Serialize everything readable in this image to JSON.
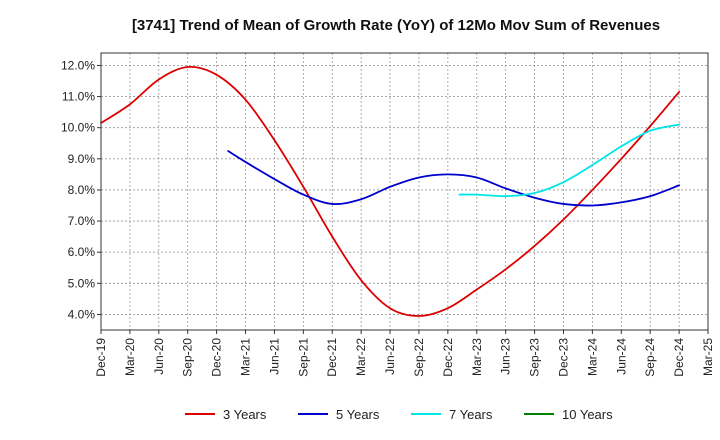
{
  "chart_data": {
    "type": "line",
    "title": "[3741]  Trend of Mean of Growth Rate (YoY) of 12Mo Mov Sum of Revenues",
    "xlabel": "",
    "ylabel": "",
    "ylim": [
      3.5,
      12.4
    ],
    "y_ticks": [
      4.0,
      5.0,
      6.0,
      7.0,
      8.0,
      9.0,
      10.0,
      11.0,
      12.0
    ],
    "y_tick_labels": [
      "4.0%",
      "5.0%",
      "6.0%",
      "7.0%",
      "8.0%",
      "9.0%",
      "10.0%",
      "11.0%",
      "12.0%"
    ],
    "x_ticks": [
      "Dec-19",
      "Mar-20",
      "Jun-20",
      "Sep-20",
      "Dec-20",
      "Mar-21",
      "Jun-21",
      "Sep-21",
      "Dec-21",
      "Mar-22",
      "Jun-22",
      "Sep-22",
      "Dec-22",
      "Mar-23",
      "Jun-23",
      "Sep-23",
      "Dec-23",
      "Mar-24",
      "Jun-24",
      "Sep-24",
      "Dec-24",
      "Mar-25"
    ],
    "grid": true,
    "legend_position": "bottom",
    "series": [
      {
        "name": "3 Years",
        "color": "#dd0000",
        "points": [
          [
            0,
            10.15
          ],
          [
            1,
            10.75
          ],
          [
            2,
            11.55
          ],
          [
            3,
            11.95
          ],
          [
            4,
            11.7
          ],
          [
            5,
            10.9
          ],
          [
            6,
            9.6
          ],
          [
            7,
            8.1
          ],
          [
            8,
            6.5
          ],
          [
            9,
            5.1
          ],
          [
            10,
            4.2
          ],
          [
            11,
            3.95
          ],
          [
            12,
            4.2
          ],
          [
            13,
            4.8
          ],
          [
            14,
            5.45
          ],
          [
            15,
            6.2
          ],
          [
            16,
            7.05
          ],
          [
            17,
            8.0
          ],
          [
            18,
            9.0
          ],
          [
            19,
            10.05
          ],
          [
            20,
            11.15
          ]
        ]
      },
      {
        "name": "5 Years",
        "color": "#0000cc",
        "points": [
          [
            4.4,
            9.25
          ],
          [
            5,
            8.9
          ],
          [
            6,
            8.35
          ],
          [
            7,
            7.85
          ],
          [
            8,
            7.55
          ],
          [
            9,
            7.7
          ],
          [
            10,
            8.1
          ],
          [
            11,
            8.4
          ],
          [
            12,
            8.5
          ],
          [
            13,
            8.4
          ],
          [
            14,
            8.05
          ],
          [
            15,
            7.75
          ],
          [
            16,
            7.55
          ],
          [
            17,
            7.5
          ],
          [
            18,
            7.6
          ],
          [
            19,
            7.8
          ],
          [
            20,
            8.15
          ]
        ]
      },
      {
        "name": "7 Years",
        "color": "#00e5e5",
        "points": [
          [
            12.4,
            7.85
          ],
          [
            13,
            7.85
          ],
          [
            14,
            7.8
          ],
          [
            15,
            7.9
          ],
          [
            16,
            8.25
          ],
          [
            17,
            8.8
          ],
          [
            18,
            9.4
          ],
          [
            19,
            9.9
          ],
          [
            20,
            10.1
          ]
        ]
      },
      {
        "name": "10 Years",
        "color": "#008000",
        "points": []
      }
    ]
  }
}
